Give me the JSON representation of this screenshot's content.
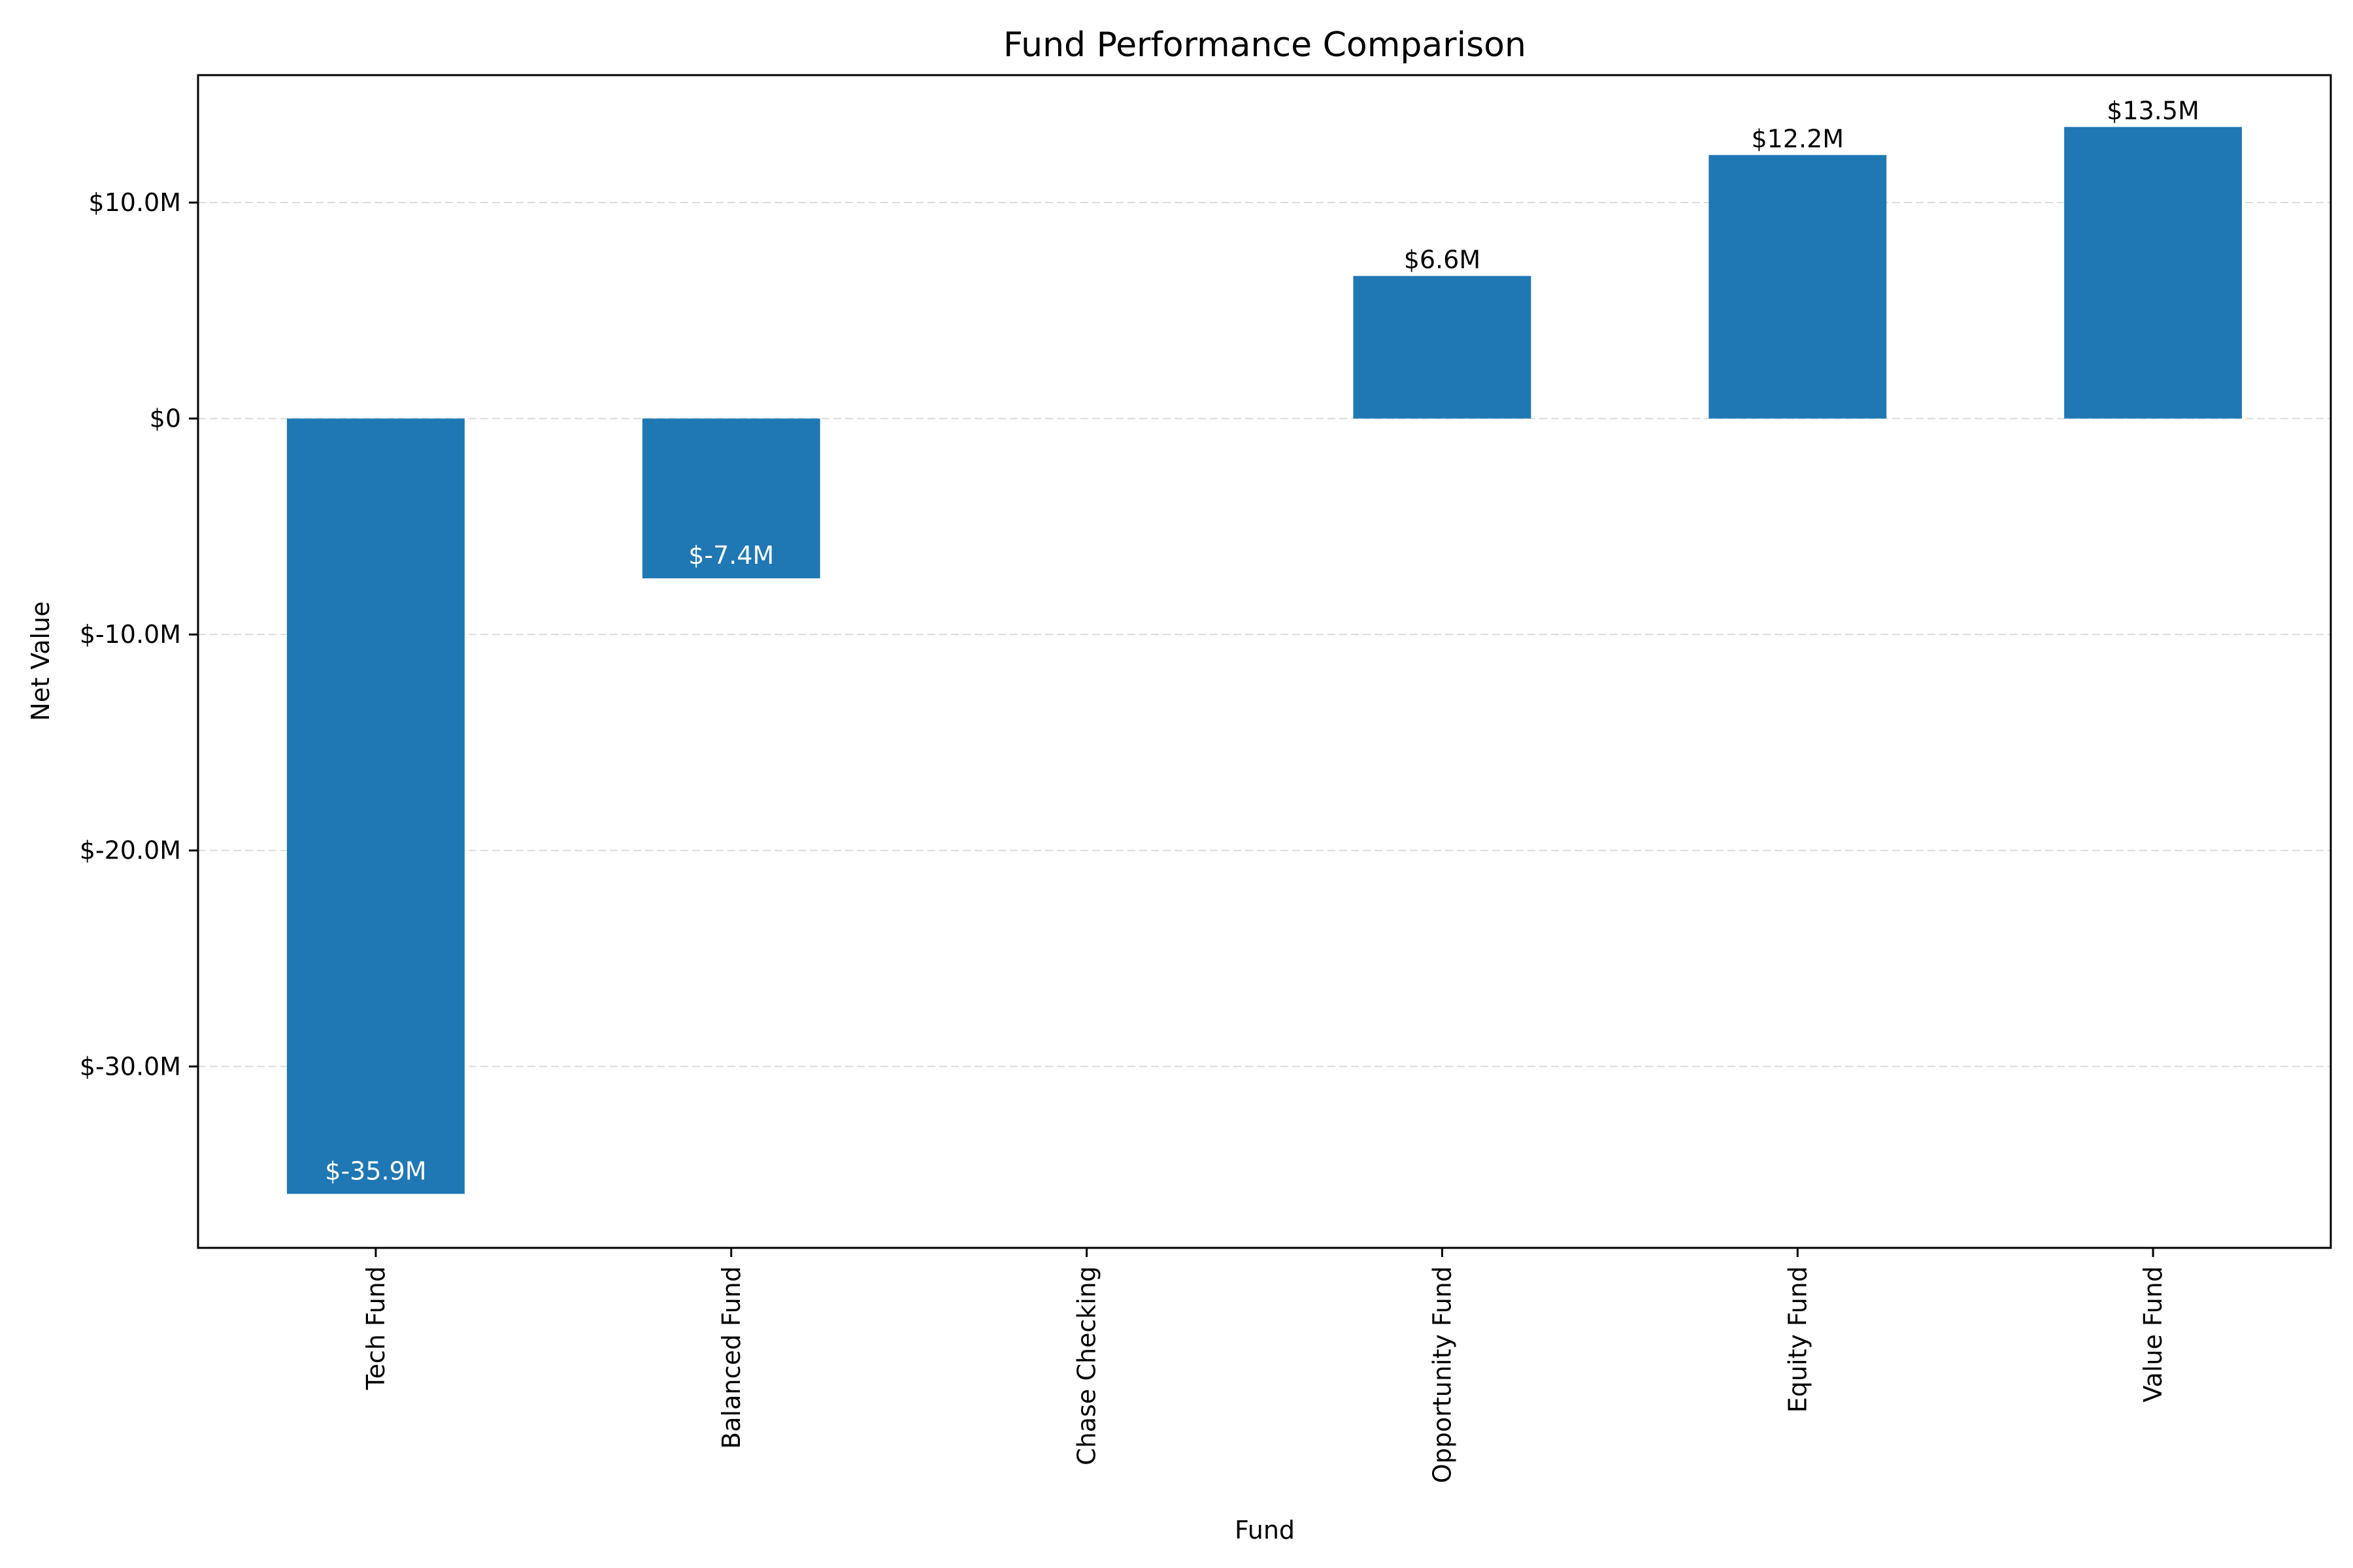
{
  "chart_data": {
    "type": "bar",
    "title": "Fund Performance Comparison",
    "xlabel": "Fund",
    "ylabel": "Net Value",
    "categories": [
      "Tech Fund",
      "Balanced Fund",
      "Chase Checking",
      "Opportunity Fund",
      "Equity Fund",
      "Value Fund"
    ],
    "values": [
      -35.9,
      -7.4,
      0,
      6.6,
      12.2,
      13.5
    ],
    "value_unit": "$M",
    "data_labels": [
      "$-35.9M",
      "$-7.4M",
      "",
      "$6.6M",
      "$12.2M",
      "$13.5M"
    ],
    "ylim": [
      -38.4,
      15.9
    ],
    "yticks": [
      {
        "value": 10,
        "label": "$10.0M"
      },
      {
        "value": 0,
        "label": "$0"
      },
      {
        "value": -10,
        "label": "$-10.0M"
      },
      {
        "value": -20,
        "label": "$-20.0M"
      },
      {
        "value": -30,
        "label": "$-30.0M"
      }
    ],
    "grid": "horizontal dashed",
    "bar_color": "#1f77b4",
    "legend": "none"
  }
}
